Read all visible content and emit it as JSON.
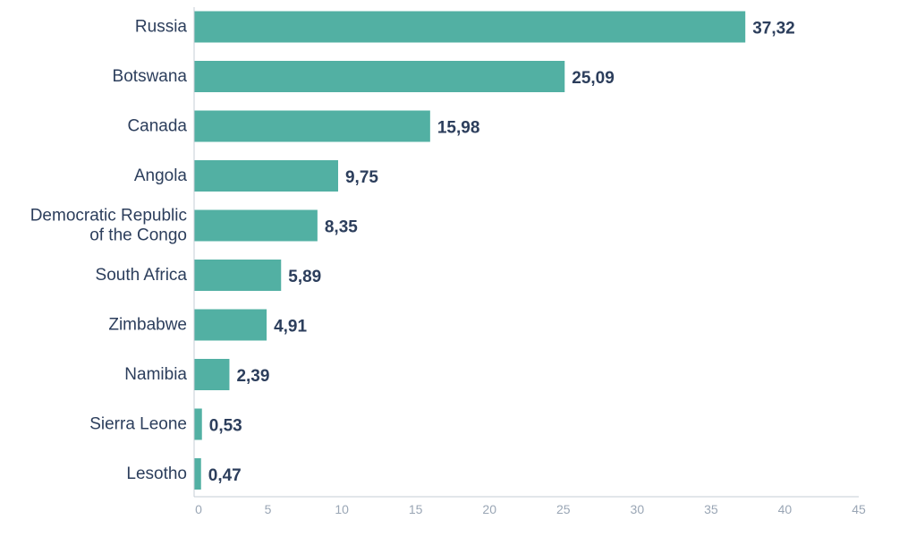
{
  "chart_data": {
    "type": "bar",
    "orientation": "horizontal",
    "title": "",
    "xlabel": "",
    "ylabel": "",
    "categories": [
      "Russia",
      "Botswana",
      "Canada",
      "Angola",
      "Democratic Republic of the Congo",
      "South Africa",
      "Zimbabwe",
      "Namibia",
      "Sierra Leone",
      "Lesotho"
    ],
    "category_lines": [
      [
        "Russia"
      ],
      [
        "Botswana"
      ],
      [
        "Canada"
      ],
      [
        "Angola"
      ],
      [
        "Democratic Republic",
        "of the Congo"
      ],
      [
        "South Africa"
      ],
      [
        "Zimbabwe"
      ],
      [
        "Namibia"
      ],
      [
        "Sierra Leone"
      ],
      [
        "Lesotho"
      ]
    ],
    "values": [
      37.32,
      25.09,
      15.98,
      9.75,
      8.35,
      5.89,
      4.91,
      2.39,
      0.53,
      0.47
    ],
    "value_labels": [
      "37,32",
      "25,09",
      "15,98",
      "9,75",
      "8,35",
      "5,89",
      "4,91",
      "2,39",
      "0,53",
      "0,47"
    ],
    "xlim": [
      0,
      45
    ],
    "xticks": [
      0,
      5,
      10,
      15,
      20,
      25,
      30,
      35,
      40,
      45
    ],
    "grid": false,
    "legend": "none",
    "colors": {
      "bar": "#52b0a3",
      "label": "#2c3e5c",
      "tick": "#9aa6b5",
      "axis": "#c5ccd5"
    }
  }
}
